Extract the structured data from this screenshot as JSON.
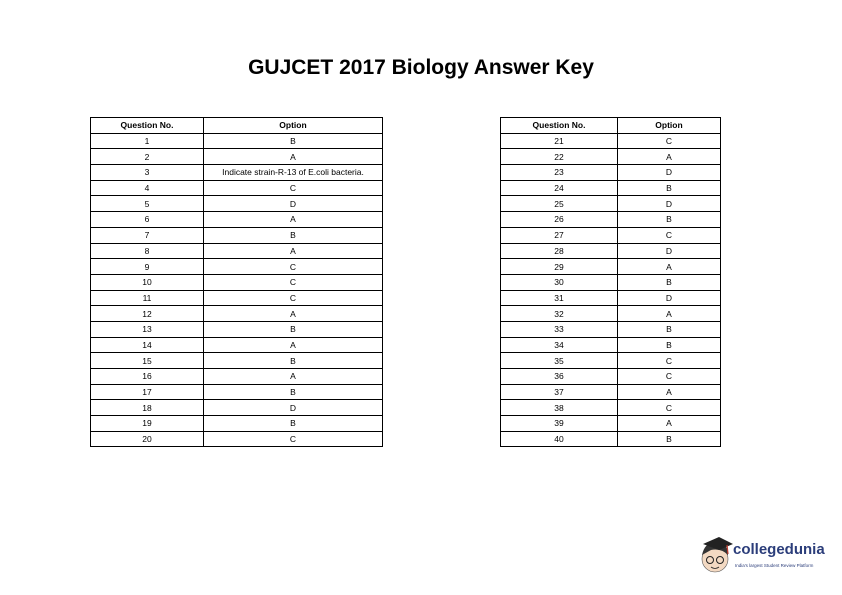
{
  "title": "GUJCET 2017 Biology  Answer Key",
  "headers": {
    "question": "Question No.",
    "option": "Option"
  },
  "left_table": [
    [
      "1",
      "B"
    ],
    [
      "2",
      "A"
    ],
    [
      "3",
      "Indicate strain-R-13 of E.coli bacteria."
    ],
    [
      "4",
      "C"
    ],
    [
      "5",
      "D"
    ],
    [
      "6",
      "A"
    ],
    [
      "7",
      "B"
    ],
    [
      "8",
      "A"
    ],
    [
      "9",
      "C"
    ],
    [
      "10",
      "C"
    ],
    [
      "11",
      "C"
    ],
    [
      "12",
      "A"
    ],
    [
      "13",
      "B"
    ],
    [
      "14",
      "A"
    ],
    [
      "15",
      "B"
    ],
    [
      "16",
      "A"
    ],
    [
      "17",
      "B"
    ],
    [
      "18",
      "D"
    ],
    [
      "19",
      "B"
    ],
    [
      "20",
      "C"
    ]
  ],
  "right_table": [
    [
      "21",
      "C"
    ],
    [
      "22",
      "A"
    ],
    [
      "23",
      "D"
    ],
    [
      "24",
      "B"
    ],
    [
      "25",
      "D"
    ],
    [
      "26",
      "B"
    ],
    [
      "27",
      "C"
    ],
    [
      "28",
      "D"
    ],
    [
      "29",
      "A"
    ],
    [
      "30",
      "B"
    ],
    [
      "31",
      "D"
    ],
    [
      "32",
      "A"
    ],
    [
      "33",
      "B"
    ],
    [
      "34",
      "B"
    ],
    [
      "35",
      "C"
    ],
    [
      "36",
      "C"
    ],
    [
      "37",
      "A"
    ],
    [
      "38",
      "C"
    ],
    [
      "39",
      "A"
    ],
    [
      "40",
      "B"
    ]
  ],
  "logo": {
    "brand": "collegedunia",
    "tagline": "India's largest Student Review Platform",
    "color": "#2b3d7a"
  }
}
